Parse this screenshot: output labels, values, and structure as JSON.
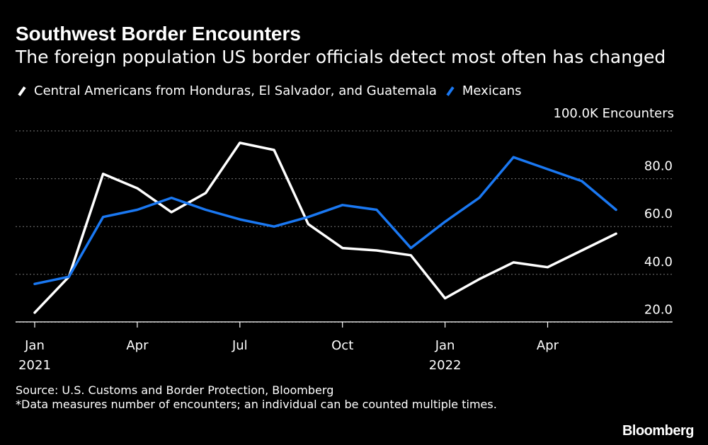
{
  "title": "Southwest Border Encounters",
  "subtitle": "The foreign population US border officials detect most often has changed",
  "units_label": "100.0K Encounters",
  "colors": {
    "central_americans": "#ffffff",
    "mexicans": "#1a78f2",
    "grid": "#777777",
    "background": "#000000"
  },
  "footer": {
    "source": "Source: U.S. Customs and Border Protection, Bloomberg",
    "note": "*Data measures number of encounters; an individual can be counted multiple times."
  },
  "logo": "Bloomberg",
  "chart_data": {
    "type": "line",
    "title": "Southwest Border Encounters",
    "ylabel": "100.0K Encounters",
    "ylim": [
      15,
      100
    ],
    "y_ticks": [
      "20.0",
      "40.0",
      "60.0",
      "80.0"
    ],
    "y_tick_values": [
      20,
      40,
      60,
      80
    ],
    "y_grid": [
      20,
      40,
      60,
      80,
      100
    ],
    "grid": true,
    "x": [
      "2021-01",
      "2021-02",
      "2021-03",
      "2021-04",
      "2021-05",
      "2021-06",
      "2021-07",
      "2021-08",
      "2021-09",
      "2021-10",
      "2021-11",
      "2021-12",
      "2022-01",
      "2022-02",
      "2022-03",
      "2022-04",
      "2022-05",
      "2022-06"
    ],
    "x_ticks": [
      {
        "index": 0,
        "label": "Jan",
        "sublabel": "2021"
      },
      {
        "index": 3,
        "label": "Apr",
        "sublabel": ""
      },
      {
        "index": 6,
        "label": "Jul",
        "sublabel": ""
      },
      {
        "index": 9,
        "label": "Oct",
        "sublabel": ""
      },
      {
        "index": 12,
        "label": "Jan",
        "sublabel": "2022"
      },
      {
        "index": 15,
        "label": "Apr",
        "sublabel": ""
      }
    ],
    "legend_position": "top-left",
    "series": [
      {
        "name": "Central Americans from Honduras, El Salvador, and Guatemala",
        "color": "#ffffff",
        "values": [
          24,
          39,
          82,
          76,
          66,
          74,
          95,
          92,
          61,
          51,
          50,
          48,
          30,
          38,
          45,
          43,
          50,
          57
        ]
      },
      {
        "name": "Mexicans",
        "color": "#1a78f2",
        "values": [
          36,
          39,
          64,
          67,
          72,
          67,
          63,
          60,
          64,
          69,
          67,
          51,
          62,
          72,
          89,
          84,
          79,
          67
        ]
      }
    ]
  }
}
